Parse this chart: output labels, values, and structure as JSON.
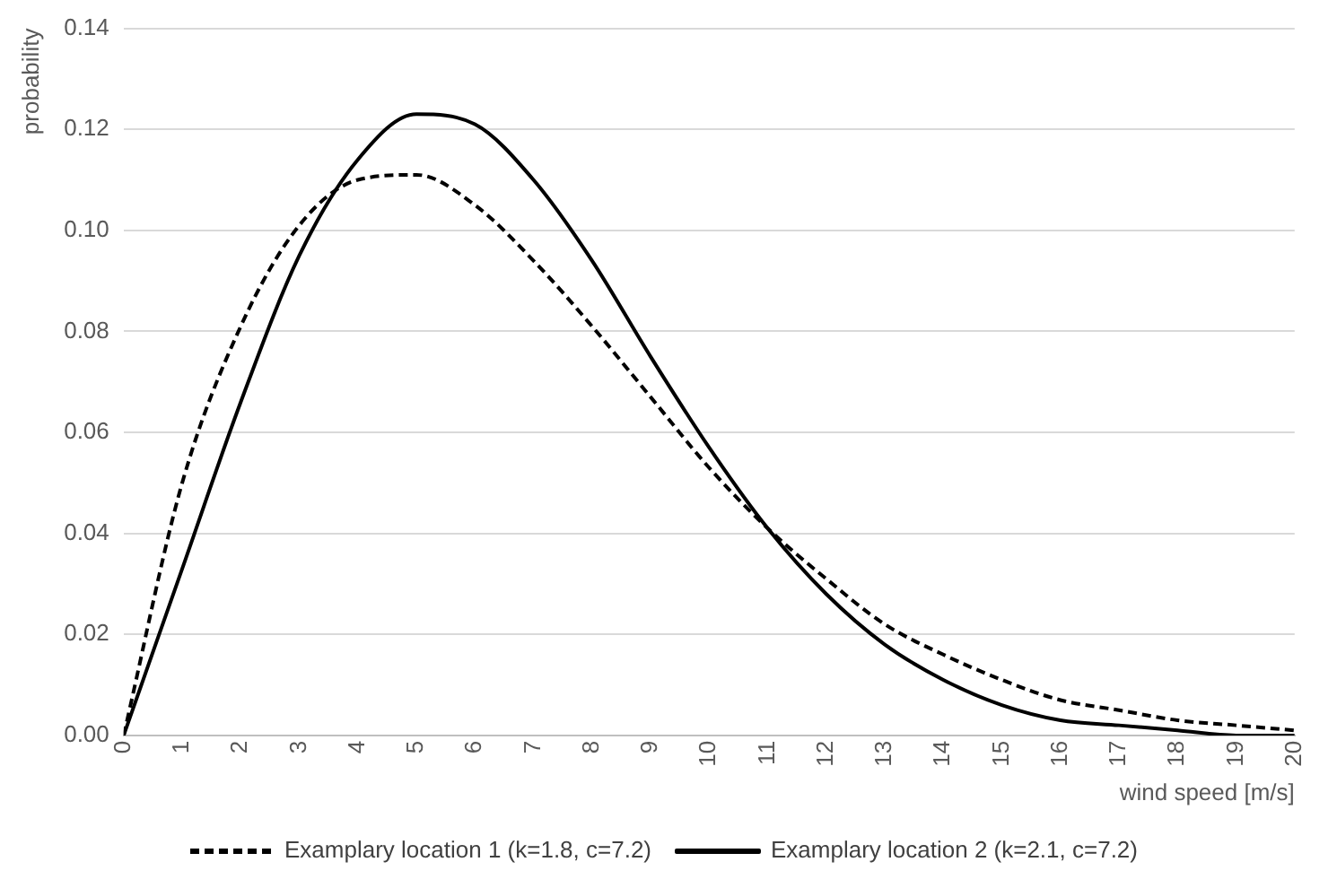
{
  "chart_data": {
    "type": "line",
    "xlabel": "wind speed [m/s]",
    "ylabel": "probability",
    "x": [
      0,
      1,
      2,
      3,
      4,
      5,
      6,
      7,
      8,
      9,
      10,
      11,
      12,
      13,
      14,
      15,
      16,
      17,
      18,
      19,
      20
    ],
    "series": [
      {
        "name": "Examplary location 1 (k=1.8, c=7.2)",
        "color": "#000000",
        "line_style": "dashed",
        "values": [
          0,
          0.05,
          0.081,
          0.101,
          0.11,
          0.111,
          0.105,
          0.094,
          0.081,
          0.067,
          0.053,
          0.041,
          0.031,
          0.022,
          0.016,
          0.011,
          0.007,
          0.005,
          0.003,
          0.002,
          0.001
        ]
      },
      {
        "name": "Examplary location 2 (k=2.1, c=7.2)",
        "color": "#000000",
        "line_style": "solid",
        "values": [
          0,
          0.033,
          0.066,
          0.095,
          0.114,
          0.123,
          0.121,
          0.11,
          0.094,
          0.075,
          0.057,
          0.041,
          0.028,
          0.018,
          0.011,
          0.006,
          0.003,
          0.002,
          0.001,
          0.0,
          0.0
        ]
      }
    ],
    "xlim": [
      0,
      20
    ],
    "xticks": [
      0,
      1,
      2,
      3,
      4,
      5,
      6,
      7,
      8,
      9,
      10,
      11,
      12,
      13,
      14,
      15,
      16,
      17,
      18,
      19,
      20
    ],
    "ylim": [
      0,
      0.14
    ],
    "yticks": [
      {
        "value": 0,
        "label": "0.00"
      },
      {
        "value": 0.02,
        "label": "0.02"
      },
      {
        "value": 0.04,
        "label": "0.04"
      },
      {
        "value": 0.06,
        "label": "0.06"
      },
      {
        "value": 0.08,
        "label": "0.08"
      },
      {
        "value": 0.1,
        "label": "0.10"
      },
      {
        "value": 0.12,
        "label": "0.12"
      },
      {
        "value": 0.14,
        "label": "0.14"
      }
    ],
    "grid": "y",
    "legend": "bottom",
    "marker": "none"
  }
}
